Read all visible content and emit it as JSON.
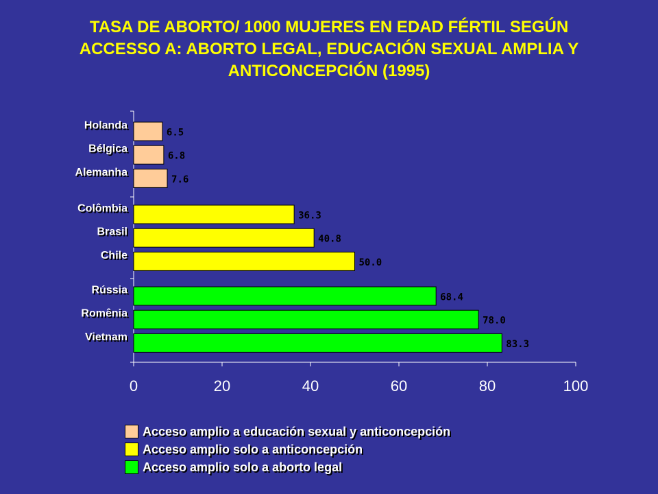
{
  "title_lines": [
    "TASA DE ABORTO/ 1000 MUJERES EN EDAD FÉRTIL SEGÚN",
    "ACCESSO A: ABORTO LEGAL, EDUCACIÓN SEXUAL AMPLIA  Y",
    "ANTICONCEPCIÓN (1995)"
  ],
  "colors": {
    "background": "#333399",
    "title": "#ffff00",
    "group1": "#ffcc99",
    "group2": "#ffff00",
    "group3": "#00ff00"
  },
  "chart_data": {
    "type": "bar",
    "orientation": "horizontal",
    "xlim": [
      0,
      100
    ],
    "x_ticks": [
      "0",
      "20",
      "40",
      "60",
      "80",
      "100"
    ],
    "grid": false,
    "legend_position": "bottom",
    "groups": [
      {
        "legend": "Acceso amplio a educación sexual y anticoncepción",
        "color": "#ffcc99",
        "bars": [
          {
            "category": "Holanda",
            "value": 6.5,
            "label": "6.5"
          },
          {
            "category": "Bélgica",
            "value": 6.8,
            "label": "6.8"
          },
          {
            "category": "Alemanha",
            "value": 7.6,
            "label": "7.6"
          }
        ]
      },
      {
        "legend": "Acceso amplio solo a anticoncepción",
        "color": "#ffff00",
        "bars": [
          {
            "category": "Colômbia",
            "value": 36.3,
            "label": "36.3"
          },
          {
            "category": "Brasil",
            "value": 40.8,
            "label": "40.8"
          },
          {
            "category": "Chile",
            "value": 50.0,
            "label": "50.0"
          }
        ]
      },
      {
        "legend": "Acceso amplio solo a aborto legal",
        "color": "#00ff00",
        "bars": [
          {
            "category": "Rússia",
            "value": 68.4,
            "label": "68.4"
          },
          {
            "category": "Romênia",
            "value": 78.0,
            "label": "78.0"
          },
          {
            "category": "Vietnam",
            "value": 83.3,
            "label": "83.3"
          }
        ]
      }
    ]
  }
}
